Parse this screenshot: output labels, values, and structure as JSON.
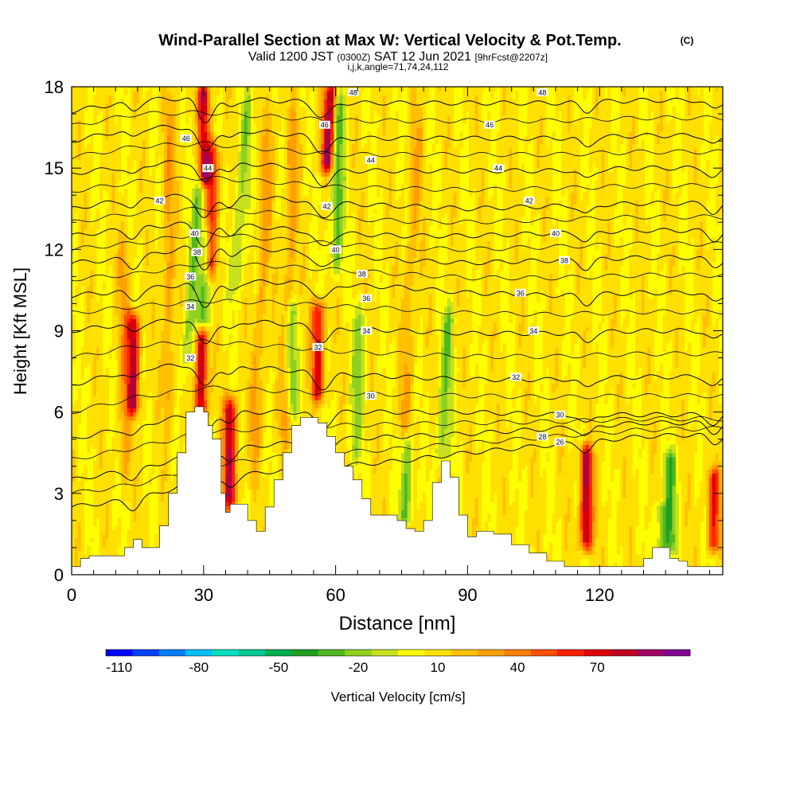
{
  "title": {
    "main": "Wind-Parallel Section at Max W: Vertical Velocity & Pot.Temp.",
    "copyright": "(C)",
    "valid_prefix": "Valid 1200 JST",
    "valid_utc": "(0300Z)",
    "valid_date": "SAT 12 Jun 2021",
    "forecast": "[9hrFcst@2207z]",
    "indices": "i,j,k,angle=71,74,24,112"
  },
  "chart_data": {
    "type": "heatmap",
    "xlabel": "Distance [nm]",
    "ylabel": "Height [Kft MSL]",
    "xlim": [
      0,
      148
    ],
    "ylim": [
      0,
      18
    ],
    "x_ticks": [
      "0",
      "30",
      "60",
      "90",
      "120"
    ],
    "y_ticks": [
      "0",
      "3",
      "6",
      "9",
      "12",
      "15",
      "18"
    ],
    "terrain": {
      "x": [
        0,
        2,
        4,
        10,
        12,
        14,
        16,
        18,
        20,
        22,
        24,
        26,
        28,
        30,
        31,
        32,
        34,
        35,
        36,
        38,
        40,
        42,
        44,
        46,
        48,
        50,
        52,
        54,
        56,
        58,
        60,
        62,
        64,
        66,
        68,
        70,
        72,
        74,
        76,
        78,
        80,
        82,
        84,
        86,
        88,
        90,
        92,
        96,
        100,
        104,
        108,
        112,
        116,
        120,
        124,
        128,
        130,
        132,
        134,
        136,
        138,
        140,
        142,
        144,
        146,
        148
      ],
      "y": [
        0.3,
        0.6,
        0.7,
        0.7,
        1.0,
        1.3,
        1.0,
        1.0,
        1.8,
        3.0,
        4.5,
        6.0,
        6.2,
        6.0,
        5.5,
        5.0,
        3.0,
        2.3,
        2.6,
        2.6,
        2.0,
        1.6,
        2.5,
        3.5,
        4.5,
        5.5,
        5.8,
        5.8,
        5.6,
        5.1,
        4.5,
        4.0,
        3.5,
        2.8,
        2.2,
        2.2,
        2.2,
        2.0,
        1.7,
        1.6,
        2.0,
        3.4,
        4.2,
        3.6,
        2.2,
        1.4,
        1.6,
        1.5,
        1.1,
        0.8,
        0.5,
        0.3,
        0.3,
        0.3,
        0.3,
        0.3,
        0.6,
        1.0,
        1.0,
        0.6,
        0.5,
        0.3,
        0.3,
        0.3,
        0.3,
        0.3
      ]
    },
    "w_features": [
      {
        "x": 14,
        "ybot": 6.0,
        "ytop": 9.6,
        "w": 75,
        "tilt": 0.0
      },
      {
        "x": 30,
        "ybot": 14.5,
        "ytop": 18.0,
        "w": 90,
        "tilt": 0.0
      },
      {
        "x": 31.5,
        "ybot": 11.0,
        "ytop": 16.0,
        "w": 55,
        "tilt": 0.15
      },
      {
        "x": 29.5,
        "ybot": 6.0,
        "ytop": 9.0,
        "w": 75,
        "tilt": 0.0
      },
      {
        "x": 36,
        "ybot": 2.5,
        "ytop": 6.5,
        "w": 75,
        "tilt": 0.0
      },
      {
        "x": 58,
        "ybot": 15.0,
        "ytop": 18.0,
        "w": 80,
        "tilt": 0.3
      },
      {
        "x": 56,
        "ybot": 6.5,
        "ytop": 10.0,
        "w": 65,
        "tilt": 0.0
      },
      {
        "x": 117,
        "ybot": 1.0,
        "ytop": 4.7,
        "w": 80,
        "tilt": 0.0
      },
      {
        "x": 146,
        "ybot": 1.0,
        "ytop": 3.8,
        "w": 55,
        "tilt": 0.0
      },
      {
        "x": 12,
        "ybot": 3.0,
        "ytop": 13.0,
        "w": 20,
        "tilt": 0.0
      },
      {
        "x": 22,
        "ybot": 5.0,
        "ytop": 18.0,
        "w": 22,
        "tilt": 0.0
      },
      {
        "x": 41,
        "ybot": 3.0,
        "ytop": 18.0,
        "w": 20,
        "tilt": 0.3
      },
      {
        "x": 48,
        "ybot": 4.0,
        "ytop": 18.0,
        "w": 20,
        "tilt": 0.2
      },
      {
        "x": 75,
        "ybot": 4.0,
        "ytop": 18.0,
        "w": 18,
        "tilt": 0.3
      },
      {
        "x": 26,
        "ybot": 7.0,
        "ytop": 18.0,
        "w": -30,
        "tilt": 0.4
      },
      {
        "x": 30,
        "ybot": 9.0,
        "ytop": 13.0,
        "w": -30,
        "tilt": 0.25
      },
      {
        "x": 37,
        "ybot": 10.0,
        "ytop": 18.0,
        "w": -25,
        "tilt": 0.4
      },
      {
        "x": 50,
        "ybot": 6.0,
        "ytop": 10.0,
        "w": -30,
        "tilt": 0.0
      },
      {
        "x": 60,
        "ybot": 11.0,
        "ytop": 18.0,
        "w": -35,
        "tilt": 0.15
      },
      {
        "x": 64,
        "ybot": 4.0,
        "ytop": 10.0,
        "w": -25,
        "tilt": 0.3
      },
      {
        "x": 76,
        "ybot": 2.0,
        "ytop": 5.0,
        "w": -35,
        "tilt": 0.0
      },
      {
        "x": 84,
        "ybot": 4.0,
        "ytop": 10.0,
        "w": -30,
        "tilt": 0.3
      },
      {
        "x": 136,
        "ybot": 1.0,
        "ytop": 4.5,
        "w": -40,
        "tilt": 0.0
      },
      {
        "x": 134,
        "ybot": 0.5,
        "ytop": 2.5,
        "w": -25,
        "tilt": 0.0
      }
    ],
    "theta_contours": {
      "levels": [
        26,
        28,
        30,
        32,
        34,
        36,
        38,
        40,
        42,
        44,
        46,
        48
      ],
      "profile_x": [
        0,
        15,
        30,
        45,
        60,
        75,
        90,
        110,
        130,
        148
      ],
      "profiles": [
        [
          2.5,
          2.8,
          3.5,
          3.8,
          4.0,
          4.2,
          4.5,
          4.8,
          5.1,
          5.2
        ],
        [
          3.5,
          3.9,
          4.5,
          4.8,
          5.0,
          5.1,
          5.2,
          5.4,
          5.6,
          5.6
        ],
        [
          5.0,
          5.5,
          6.0,
          6.0,
          6.0,
          6.0,
          6.0,
          5.9,
          5.9,
          5.9
        ],
        [
          7.0,
          7.6,
          7.8,
          7.6,
          7.4,
          7.3,
          7.2,
          7.2,
          7.3,
          7.3
        ],
        [
          9.0,
          9.3,
          9.4,
          9.3,
          9.1,
          9.0,
          8.9,
          8.9,
          9.0,
          9.0
        ],
        [
          10.3,
          10.5,
          10.8,
          10.8,
          10.7,
          10.6,
          10.4,
          10.3,
          10.4,
          10.4
        ],
        [
          11.5,
          11.7,
          12.2,
          12.0,
          11.8,
          11.6,
          11.5,
          11.6,
          11.7,
          11.7
        ],
        [
          12.5,
          12.8,
          13.0,
          12.8,
          12.6,
          12.5,
          12.5,
          12.6,
          12.7,
          12.7
        ],
        [
          13.5,
          13.9,
          14.0,
          13.9,
          13.7,
          13.6,
          13.5,
          13.6,
          13.7,
          13.7
        ],
        [
          14.8,
          15.1,
          15.3,
          15.1,
          14.9,
          14.9,
          14.9,
          14.9,
          15.0,
          15.0
        ],
        [
          16.0,
          16.5,
          16.5,
          16.3,
          16.1,
          16.1,
          16.1,
          16.1,
          16.2,
          16.2
        ],
        [
          17.1,
          17.5,
          17.6,
          17.5,
          17.4,
          17.4,
          17.4,
          17.4,
          17.5,
          17.5
        ]
      ],
      "labels": [
        {
          "text": "48",
          "x": 64,
          "y": 17.8
        },
        {
          "text": "48",
          "x": 107,
          "y": 17.8
        },
        {
          "text": "46",
          "x": 57.5,
          "y": 16.6
        },
        {
          "text": "46",
          "x": 95,
          "y": 16.6
        },
        {
          "text": "46",
          "x": 26,
          "y": 16.1
        },
        {
          "text": "44",
          "x": 31,
          "y": 15.0
        },
        {
          "text": "44",
          "x": 68,
          "y": 15.3
        },
        {
          "text": "44",
          "x": 97,
          "y": 15.0
        },
        {
          "text": "42",
          "x": 20,
          "y": 13.8
        },
        {
          "text": "42",
          "x": 58,
          "y": 13.6
        },
        {
          "text": "42",
          "x": 104,
          "y": 13.8
        },
        {
          "text": "40",
          "x": 28,
          "y": 12.6
        },
        {
          "text": "40",
          "x": 60,
          "y": 12.0
        },
        {
          "text": "40",
          "x": 110,
          "y": 12.6
        },
        {
          "text": "38",
          "x": 28.5,
          "y": 11.9
        },
        {
          "text": "38",
          "x": 66,
          "y": 11.1
        },
        {
          "text": "38",
          "x": 112,
          "y": 11.6
        },
        {
          "text": "36",
          "x": 27,
          "y": 11.0
        },
        {
          "text": "36",
          "x": 67,
          "y": 10.2
        },
        {
          "text": "36",
          "x": 102,
          "y": 10.4
        },
        {
          "text": "34",
          "x": 27,
          "y": 9.9
        },
        {
          "text": "34",
          "x": 67,
          "y": 9.0
        },
        {
          "text": "34",
          "x": 105,
          "y": 9.0
        },
        {
          "text": "32",
          "x": 27,
          "y": 8.0
        },
        {
          "text": "32",
          "x": 56,
          "y": 8.4
        },
        {
          "text": "32",
          "x": 101,
          "y": 7.3
        },
        {
          "text": "30",
          "x": 68,
          "y": 6.6
        },
        {
          "text": "30",
          "x": 111,
          "y": 5.9
        },
        {
          "text": "28",
          "x": 107,
          "y": 5.1
        },
        {
          "text": "26",
          "x": 111,
          "y": 4.9
        }
      ]
    },
    "colorbar": {
      "label": "Vertical Velocity [cm/s]",
      "tick_labels": [
        "-110",
        "-80",
        "-50",
        "-20",
        "10",
        "40",
        "70"
      ],
      "tick_values": [
        -110,
        -80,
        -50,
        -20,
        10,
        40,
        70
      ],
      "colors": [
        "#0000ff",
        "#0040ff",
        "#0080ff",
        "#00c0ff",
        "#00e0c0",
        "#00c890",
        "#00b050",
        "#20a020",
        "#50b820",
        "#90d020",
        "#c8e020",
        "#ffff00",
        "#ffe000",
        "#ffc000",
        "#ffa000",
        "#ff8000",
        "#ff5000",
        "#ff2000",
        "#e00000",
        "#c00020",
        "#a00060",
        "#800090"
      ],
      "bounds": [
        -120,
        100
      ]
    }
  }
}
